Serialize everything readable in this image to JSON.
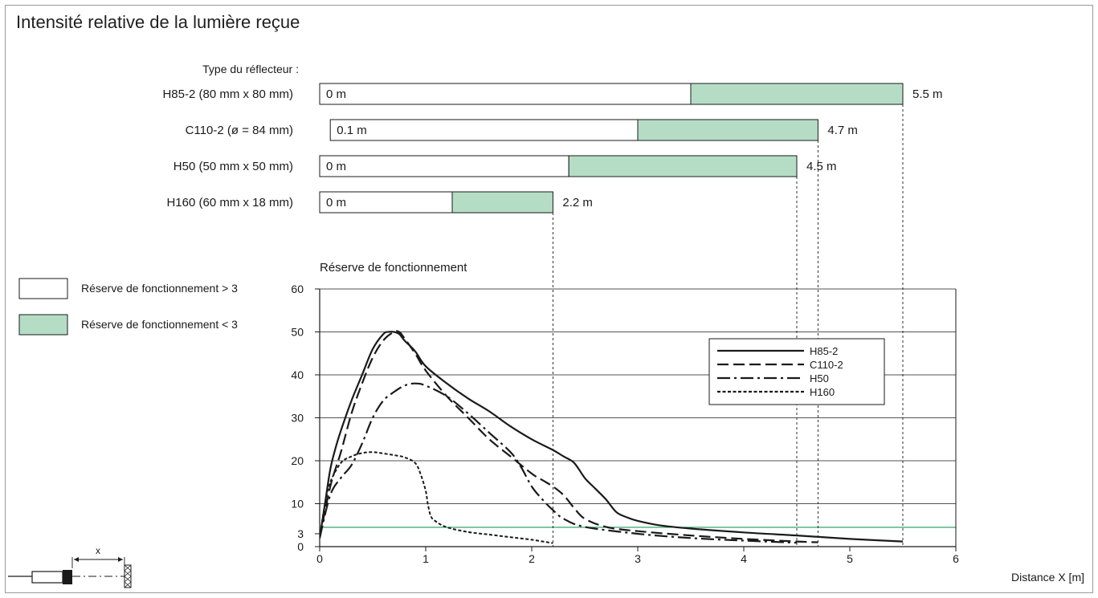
{
  "colors": {
    "zone_low": "#b5ddc6",
    "zone_high": "#ffffff",
    "ref_line": "#1f9a5a",
    "curve": "#1a1a1a"
  },
  "chart_data": {
    "type": "line",
    "title": "Intensité relative de la lumière reçue",
    "bars": {
      "heading": "Type du réflecteur :",
      "items": [
        {
          "label": "H85-2 (80 mm x 80 mm)",
          "start": 0,
          "start_label": "0 m",
          "green_from": 3.5,
          "end": 5.5,
          "end_label": "5.5 m"
        },
        {
          "label": "C110-2 (ø = 84 mm)",
          "start": 0.1,
          "start_label": "0.1 m",
          "green_from": 3.0,
          "end": 4.7,
          "end_label": "4.7 m"
        },
        {
          "label": "H50 (50 mm x 50 mm)",
          "start": 0,
          "start_label": "0 m",
          "green_from": 2.35,
          "end": 4.5,
          "end_label": "4.5 m"
        },
        {
          "label": "H160 (60 mm x 18 mm)",
          "start": 0,
          "start_label": "0 m",
          "green_from": 1.25,
          "end": 2.2,
          "end_label": "2.2 m"
        }
      ]
    },
    "zone_legend": [
      {
        "label": "Réserve de fonctionnement > 3",
        "zone": "high"
      },
      {
        "label": "Réserve de fonctionnement < 3",
        "zone": "low"
      }
    ],
    "ylabel": "Réserve de fonctionnement",
    "xlabel": "Distance X [m]",
    "xlim": [
      0,
      6
    ],
    "ylim": [
      0,
      60
    ],
    "xticks": [
      "0",
      "1",
      "2",
      "3",
      "4",
      "5",
      "6"
    ],
    "yticks": [
      "0",
      "3",
      "10",
      "20",
      "30",
      "40",
      "50",
      "60"
    ],
    "ytick_values": [
      0,
      3,
      10,
      20,
      30,
      40,
      50,
      60
    ],
    "grid": true,
    "reference_line": 4.5,
    "legend_position": "top-right",
    "series": [
      {
        "name": "H85-2",
        "style": "solid",
        "x": [
          0,
          0.05,
          0.1,
          0.15,
          0.2,
          0.3,
          0.4,
          0.5,
          0.6,
          0.65,
          0.7,
          0.75,
          0.8,
          0.9,
          1.0,
          1.2,
          1.4,
          1.6,
          1.8,
          2.0,
          2.2,
          2.3,
          2.4,
          2.5,
          2.6,
          2.7,
          2.8,
          2.9,
          3.0,
          3.2,
          3.5,
          4.0,
          4.5,
          5.0,
          5.5
        ],
        "y": [
          2,
          10,
          18,
          23,
          27,
          34,
          40,
          46,
          49.5,
          50,
          50,
          49.5,
          48,
          45.5,
          42,
          38,
          34.5,
          31.5,
          28,
          25,
          22.5,
          21,
          19.5,
          16,
          13.5,
          11,
          8,
          6.8,
          6,
          5,
          4.2,
          3.3,
          2.6,
          1.8,
          1.2
        ]
      },
      {
        "name": "C110-2",
        "style": "dashed",
        "x": [
          0,
          0.1,
          0.2,
          0.3,
          0.4,
          0.5,
          0.6,
          0.7,
          0.75,
          0.8,
          0.9,
          1.0,
          1.2,
          1.4,
          1.6,
          1.8,
          2.0,
          2.1,
          2.2,
          2.3,
          2.4,
          2.5,
          2.7,
          3.0,
          3.5,
          4.0,
          4.5,
          4.7
        ],
        "y": [
          2,
          14,
          22,
          31,
          38,
          44,
          48,
          50,
          50,
          48.5,
          45,
          41,
          35,
          30,
          25,
          21,
          17,
          15.5,
          14,
          12,
          9,
          6.5,
          4.6,
          3.6,
          2.6,
          1.8,
          1.2,
          1.0
        ]
      },
      {
        "name": "H50",
        "style": "dashdot",
        "x": [
          0,
          0.1,
          0.2,
          0.3,
          0.4,
          0.5,
          0.6,
          0.7,
          0.8,
          0.9,
          1.0,
          1.2,
          1.4,
          1.6,
          1.8,
          1.9,
          2.0,
          2.1,
          2.2,
          2.3,
          2.5,
          3.0,
          3.5,
          4.0,
          4.5
        ],
        "y": [
          2,
          12,
          16,
          19,
          24,
          30,
          34,
          36,
          37.5,
          38,
          37.5,
          35,
          31,
          26.5,
          22,
          18.5,
          14,
          11,
          8.5,
          6.5,
          4.6,
          3.0,
          2.0,
          1.4,
          0.9
        ]
      },
      {
        "name": "H160",
        "style": "dotted",
        "x": [
          0,
          0.05,
          0.1,
          0.2,
          0.3,
          0.4,
          0.5,
          0.6,
          0.7,
          0.8,
          0.9,
          0.95,
          1.0,
          1.02,
          1.05,
          1.1,
          1.2,
          1.4,
          1.6,
          1.8,
          2.0,
          2.2
        ],
        "y": [
          2,
          10,
          15,
          19.5,
          21,
          21.8,
          22,
          21.7,
          21.3,
          20.8,
          19.5,
          17,
          13,
          10,
          7,
          5.8,
          4.5,
          3.4,
          2.8,
          2.2,
          1.6,
          0.8
        ]
      }
    ]
  }
}
